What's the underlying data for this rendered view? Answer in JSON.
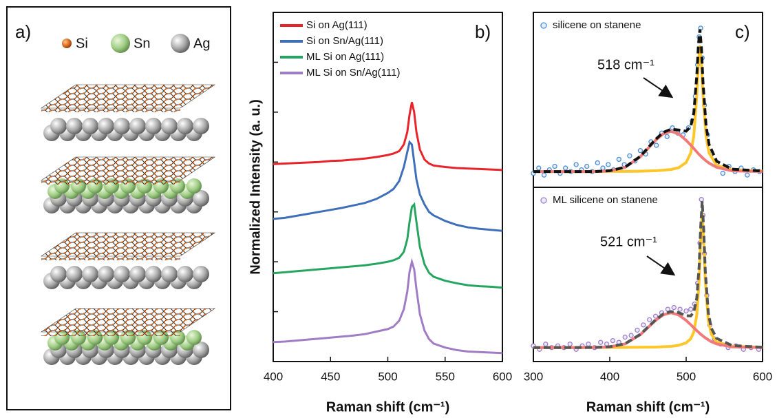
{
  "panel_a": {
    "label": "a)",
    "legend": [
      "Si",
      "Sn",
      "Ag"
    ]
  },
  "chart_data": [
    {
      "type": "line",
      "label": "b)",
      "xlabel": "Raman shift (cm⁻¹)",
      "ylabel": "Normalized Intensity (a. u.)",
      "xlim": [
        400,
        600
      ],
      "xticks": [
        400,
        450,
        500,
        550,
        600
      ],
      "ylim": [
        0,
        7
      ],
      "yticks": [
        0,
        1,
        2,
        3,
        4,
        5,
        6,
        7
      ],
      "legend": "upper left",
      "x": [
        400,
        410,
        420,
        430,
        440,
        450,
        460,
        470,
        480,
        490,
        500,
        505,
        510,
        514,
        517,
        519,
        521,
        523,
        525,
        528,
        532,
        536,
        540,
        550,
        560,
        570,
        580,
        590,
        600
      ],
      "series": [
        {
          "name": "Si on Ag(111)",
          "color": "#e8232a",
          "values": [
            3.96,
            3.97,
            3.98,
            3.99,
            4.0,
            4.02,
            4.03,
            4.05,
            4.07,
            4.1,
            4.14,
            4.17,
            4.22,
            4.35,
            4.6,
            4.95,
            5.2,
            5.0,
            4.6,
            4.25,
            4.05,
            3.97,
            3.93,
            3.9,
            3.88,
            3.87,
            3.86,
            3.85,
            3.84
          ]
        },
        {
          "name": "Si on Sn/Ag(111)",
          "color": "#3e6fb8",
          "values": [
            2.86,
            2.88,
            2.92,
            2.96,
            3.0,
            3.04,
            3.08,
            3.13,
            3.18,
            3.26,
            3.38,
            3.46,
            3.62,
            3.9,
            4.2,
            4.4,
            4.35,
            4.0,
            3.65,
            3.35,
            3.15,
            3.0,
            2.93,
            2.82,
            2.74,
            2.69,
            2.66,
            2.64,
            2.62
          ]
        },
        {
          "name": "ML Si on Ag(111)",
          "color": "#25a560",
          "values": [
            1.77,
            1.79,
            1.81,
            1.83,
            1.85,
            1.87,
            1.89,
            1.91,
            1.93,
            1.96,
            2.0,
            2.03,
            2.08,
            2.2,
            2.45,
            2.8,
            3.1,
            3.15,
            2.8,
            2.3,
            1.95,
            1.78,
            1.7,
            1.62,
            1.57,
            1.53,
            1.51,
            1.5,
            1.48
          ]
        },
        {
          "name": "ML Si on Sn/Ag(111)",
          "color": "#a07cc5",
          "values": [
            0.39,
            0.4,
            0.42,
            0.44,
            0.46,
            0.48,
            0.5,
            0.52,
            0.55,
            0.6,
            0.65,
            0.7,
            0.82,
            1.05,
            1.4,
            1.8,
            2.0,
            1.85,
            1.45,
            0.95,
            0.62,
            0.45,
            0.36,
            0.28,
            0.23,
            0.2,
            0.19,
            0.18,
            0.17
          ]
        }
      ]
    },
    {
      "type": "scatter",
      "label": "c)",
      "annotation": "518 cm⁻¹",
      "xlim": [
        300,
        600
      ],
      "ylim": [
        0,
        1
      ],
      "legend": "upper left",
      "series": [
        {
          "name": "silicene on stanene",
          "color": "#4a8fd6",
          "x": [
            300,
            307,
            314,
            321,
            328,
            335,
            342,
            349,
            356,
            363,
            370,
            377,
            384,
            391,
            398,
            405,
            412,
            419,
            426,
            433,
            440,
            447,
            454,
            461,
            468,
            475,
            482,
            489,
            496,
            503,
            508,
            512,
            515,
            517,
            519,
            521,
            524,
            528,
            533,
            540,
            548,
            556,
            564,
            572,
            580,
            588,
            596
          ],
          "values": [
            0.08,
            0.11,
            0.07,
            0.1,
            0.12,
            0.08,
            0.11,
            0.09,
            0.13,
            0.1,
            0.12,
            0.09,
            0.14,
            0.11,
            0.13,
            0.1,
            0.16,
            0.13,
            0.18,
            0.15,
            0.21,
            0.19,
            0.26,
            0.24,
            0.31,
            0.29,
            0.34,
            0.31,
            0.3,
            0.34,
            0.38,
            0.52,
            0.7,
            0.86,
            0.91,
            0.74,
            0.47,
            0.3,
            0.19,
            0.14,
            0.08,
            0.12,
            0.09,
            0.11,
            0.07,
            0.1,
            0.09
          ]
        }
      ],
      "fit_lines": [
        {
          "color": "#ffc62a",
          "dash": false,
          "x": [
            300,
            340,
            380,
            400,
            420,
            440,
            460,
            470,
            480,
            490,
            500,
            506,
            510,
            514,
            516,
            518,
            520,
            522,
            526,
            530,
            540,
            560,
            600
          ],
          "values": [
            0.09,
            0.09,
            0.09,
            0.091,
            0.091,
            0.092,
            0.095,
            0.098,
            0.102,
            0.112,
            0.142,
            0.197,
            0.292,
            0.529,
            0.711,
            0.81,
            0.711,
            0.529,
            0.292,
            0.197,
            0.125,
            0.1,
            0.093
          ]
        },
        {
          "color": "#f07a78",
          "dash": false,
          "x": [
            300,
            340,
            380,
            400,
            420,
            440,
            460,
            470,
            480,
            490,
            500,
            506,
            510,
            514,
            516,
            518,
            520,
            522,
            526,
            530,
            540,
            560,
            600
          ],
          "values": [
            0.09,
            0.09,
            0.09,
            0.094,
            0.114,
            0.175,
            0.269,
            0.306,
            0.32,
            0.306,
            0.269,
            0.241,
            0.222,
            0.202,
            0.192,
            0.183,
            0.175,
            0.166,
            0.151,
            0.138,
            0.114,
            0.094,
            0.09
          ]
        },
        {
          "color": "#111111",
          "dash": true,
          "x": [
            300,
            340,
            380,
            400,
            420,
            440,
            460,
            470,
            480,
            490,
            500,
            506,
            510,
            514,
            516,
            518,
            520,
            522,
            526,
            530,
            540,
            560,
            600
          ],
          "values": [
            0.09,
            0.09,
            0.09,
            0.095,
            0.115,
            0.177,
            0.274,
            0.314,
            0.332,
            0.328,
            0.321,
            0.348,
            0.424,
            0.641,
            0.813,
            0.903,
            0.796,
            0.605,
            0.353,
            0.245,
            0.149,
            0.104,
            0.093
          ]
        }
      ]
    },
    {
      "type": "scatter",
      "annotation": "521 cm⁻¹",
      "xlabel": "Raman shift (cm⁻¹)",
      "xlim": [
        300,
        600
      ],
      "xticks": [
        300,
        400,
        500,
        600
      ],
      "ylim": [
        0,
        1
      ],
      "legend": "upper left",
      "series": [
        {
          "name": "ML silicene on stanene",
          "color": "#a57bcf",
          "x": [
            300,
            308,
            316,
            324,
            332,
            340,
            348,
            356,
            364,
            372,
            380,
            388,
            396,
            404,
            412,
            420,
            428,
            436,
            444,
            452,
            460,
            468,
            476,
            484,
            492,
            500,
            506,
            511,
            515,
            518,
            520,
            522,
            524,
            527,
            531,
            537,
            545,
            555,
            565,
            575,
            585,
            595
          ],
          "values": [
            0.09,
            0.07,
            0.1,
            0.08,
            0.09,
            0.08,
            0.1,
            0.07,
            0.09,
            0.1,
            0.08,
            0.11,
            0.1,
            0.12,
            0.11,
            0.14,
            0.15,
            0.18,
            0.21,
            0.24,
            0.26,
            0.28,
            0.3,
            0.31,
            0.3,
            0.29,
            0.3,
            0.33,
            0.45,
            0.68,
            0.93,
            0.84,
            0.62,
            0.38,
            0.21,
            0.13,
            0.1,
            0.08,
            0.09,
            0.07,
            0.08,
            0.07
          ]
        }
      ],
      "fit_lines": [
        {
          "color": "#ffc62a",
          "dash": false,
          "x": [
            300,
            340,
            380,
            400,
            420,
            440,
            460,
            470,
            480,
            490,
            500,
            506,
            510,
            514,
            517,
            519,
            521,
            523,
            525,
            529,
            533,
            540,
            560,
            600
          ],
          "values": [
            0.08,
            0.08,
            0.081,
            0.081,
            0.081,
            0.082,
            0.083,
            0.085,
            0.087,
            0.093,
            0.107,
            0.131,
            0.17,
            0.269,
            0.465,
            0.696,
            0.85,
            0.696,
            0.465,
            0.234,
            0.157,
            0.112,
            0.088,
            0.082
          ]
        },
        {
          "color": "#f07a78",
          "dash": false,
          "x": [
            300,
            340,
            380,
            400,
            420,
            440,
            460,
            470,
            480,
            490,
            500,
            506,
            510,
            514,
            517,
            519,
            521,
            523,
            525,
            529,
            533,
            540,
            560,
            600
          ],
          "values": [
            0.08,
            0.08,
            0.08,
            0.084,
            0.101,
            0.154,
            0.236,
            0.268,
            0.28,
            0.268,
            0.236,
            0.211,
            0.194,
            0.177,
            0.165,
            0.157,
            0.15,
            0.143,
            0.136,
            0.125,
            0.114,
            0.101,
            0.084,
            0.08
          ]
        },
        {
          "color": "#555555",
          "dash": true,
          "x": [
            300,
            340,
            380,
            400,
            420,
            440,
            460,
            470,
            480,
            490,
            500,
            506,
            510,
            514,
            517,
            519,
            521,
            523,
            525,
            529,
            533,
            540,
            560,
            600
          ],
          "values": [
            0.08,
            0.08,
            0.081,
            0.085,
            0.102,
            0.156,
            0.239,
            0.273,
            0.287,
            0.281,
            0.263,
            0.262,
            0.284,
            0.366,
            0.55,
            0.773,
            0.92,
            0.759,
            0.521,
            0.279,
            0.191,
            0.133,
            0.092,
            0.082
          ]
        }
      ]
    }
  ]
}
